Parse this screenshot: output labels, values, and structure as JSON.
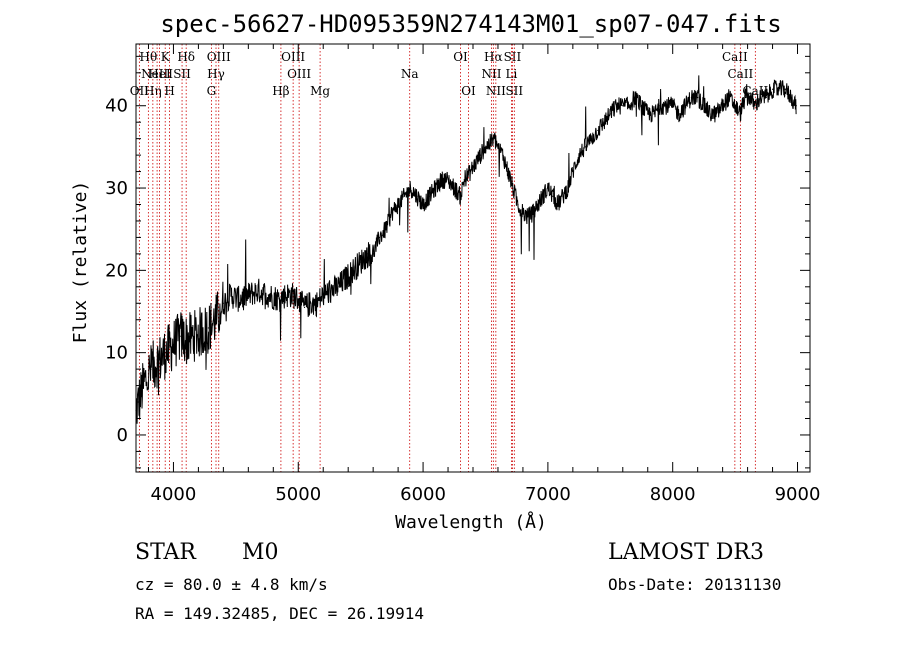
{
  "chart_data": {
    "type": "line",
    "title": "spec-56627-HD095359N274143M01_sp07-047.fits",
    "xlabel": "Wavelength (Å)",
    "ylabel": "Flux (relative)",
    "xlim": [
      3700,
      9100
    ],
    "ylim": [
      -4.5,
      47.5
    ],
    "xticks": [
      4000,
      5000,
      6000,
      7000,
      8000,
      9000
    ],
    "yticks": [
      0,
      10,
      20,
      30,
      40
    ],
    "xtick_labels": [
      "4000",
      "5000",
      "6000",
      "7000",
      "8000",
      "9000"
    ],
    "ytick_labels": [
      "0",
      "10",
      "20",
      "30",
      "40"
    ],
    "series": [
      {
        "color": "#000000",
        "style": "noisy",
        "x": [
          3700,
          3760,
          3820,
          3880,
          3940,
          4000,
          4060,
          4100,
          4160,
          4220,
          4280,
          4340,
          4400,
          4460,
          4520,
          4600,
          4680,
          4760,
          4850,
          4900,
          4950,
          5000,
          5050,
          5100,
          5150,
          5200,
          5260,
          5320,
          5380,
          5440,
          5500,
          5560,
          5600,
          5650,
          5700,
          5750,
          5800,
          5850,
          5900,
          5950,
          6000,
          6050,
          6100,
          6150,
          6200,
          6250,
          6300,
          6330,
          6380,
          6420,
          6460,
          6500,
          6540,
          6570,
          6600,
          6640,
          6680,
          6720,
          6760,
          6800,
          6840,
          6880,
          6920,
          6960,
          7000,
          7040,
          7080,
          7120,
          7160,
          7200,
          7250,
          7300,
          7350,
          7400,
          7450,
          7500,
          7550,
          7600,
          7650,
          7700,
          7750,
          7800,
          7850,
          7900,
          7950,
          8000,
          8050,
          8100,
          8150,
          8200,
          8250,
          8300,
          8350,
          8400,
          8450,
          8500,
          8540,
          8580,
          8620,
          8660,
          8700,
          8750,
          8800,
          8850,
          8900,
          8950,
          8990
        ],
        "y": [
          3,
          6,
          8,
          9,
          10,
          11,
          12,
          11.5,
          12,
          12.5,
          13,
          14,
          16,
          17,
          16.5,
          17,
          17.5,
          17,
          16.5,
          17,
          17,
          16.5,
          15.5,
          16,
          16,
          17,
          17.5,
          18,
          19,
          20,
          21,
          22,
          22,
          24,
          25,
          27,
          28,
          29,
          30,
          29,
          28,
          29,
          30,
          31,
          31,
          30,
          29,
          31,
          32,
          33,
          34,
          35,
          35.5,
          36,
          35,
          34,
          32,
          30,
          28,
          27,
          26.5,
          27,
          28,
          29,
          30,
          29,
          28,
          29,
          30,
          32,
          34,
          35,
          36,
          37,
          38,
          39,
          40,
          40,
          40,
          41,
          40,
          39,
          39,
          40,
          40,
          40,
          39,
          40,
          41,
          41,
          40,
          39,
          39,
          40,
          41,
          40,
          39,
          41,
          41,
          40,
          41,
          41,
          42,
          42,
          42,
          41,
          40
        ]
      }
    ],
    "emission_lines": [
      {
        "wl": 3727,
        "label": "OII",
        "tier": 2
      },
      {
        "wl": 3799,
        "label": "Hθ",
        "tier": 0
      },
      {
        "wl": 3835,
        "label": "Hη",
        "tier": 2
      },
      {
        "wl": 3869,
        "label": "NeIII",
        "tier": 1
      },
      {
        "wl": 3889,
        "label": "HeI",
        "tier": 1
      },
      {
        "wl": 3934,
        "label": "K",
        "tier": 0
      },
      {
        "wl": 3969,
        "label": "H",
        "tier": 2
      },
      {
        "wl": 4069,
        "label": "SII",
        "tier": 1
      },
      {
        "wl": 4102,
        "label": "Hδ",
        "tier": 0
      },
      {
        "wl": 4304,
        "label": "G",
        "tier": 2
      },
      {
        "wl": 4341,
        "label": "Hγ",
        "tier": 1
      },
      {
        "wl": 4363,
        "label": "OIII",
        "tier": 0
      },
      {
        "wl": 4861,
        "label": "Hβ",
        "tier": 2
      },
      {
        "wl": 4959,
        "label": "OIII",
        "tier": 0
      },
      {
        "wl": 5007,
        "label": "OIII",
        "tier": 1
      },
      {
        "wl": 5175,
        "label": "Mg",
        "tier": 2
      },
      {
        "wl": 5893,
        "label": "Na",
        "tier": 1
      },
      {
        "wl": 6300,
        "label": "OI",
        "tier": 0
      },
      {
        "wl": 6364,
        "label": "OI",
        "tier": 2
      },
      {
        "wl": 6548,
        "label": "NII",
        "tier": 1
      },
      {
        "wl": 6563,
        "label": "Hα",
        "tier": 0
      },
      {
        "wl": 6583,
        "label": "NII",
        "tier": 2
      },
      {
        "wl": 6708,
        "label": "Li",
        "tier": 1
      },
      {
        "wl": 6716,
        "label": "SII",
        "tier": 0
      },
      {
        "wl": 6731,
        "label": "SII",
        "tier": 2
      },
      {
        "wl": 8498,
        "label": "CaII",
        "tier": 0
      },
      {
        "wl": 8542,
        "label": "CaII",
        "tier": 1
      },
      {
        "wl": 8662,
        "label": "CaII",
        "tier": 2
      }
    ],
    "line_color": "#cc0000",
    "grid": false
  },
  "info": {
    "object_class": "STAR",
    "subclass": "M0",
    "survey": "LAMOST DR3",
    "redshift": "cz = 80.0 ± 4.8 km/s",
    "obs_date": "Obs-Date: 20131130",
    "coords": "RA = 149.32485, DEC =  26.19914"
  }
}
